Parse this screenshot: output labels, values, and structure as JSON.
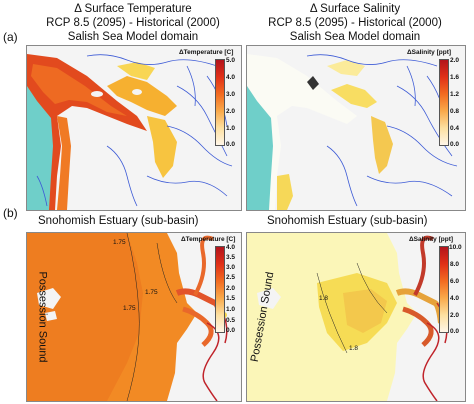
{
  "panels": {
    "a_label": "(a)",
    "b_label": "(b)"
  },
  "top_left": {
    "title_lines": [
      "Δ Surface Temperature",
      "RCP 8.5 (2095) - Historical (2000)",
      "Salish Sea Model domain"
    ],
    "colorbar_title": "ΔTemperature [C]",
    "ticks": [
      "5.0",
      "4.0",
      "3.0",
      "2.0",
      "1.0",
      "0.0"
    ]
  },
  "top_right": {
    "title_lines": [
      "Δ Surface Salinity",
      "RCP 8.5 (2095) - Historical (2000)",
      "Salish Sea Model domain"
    ],
    "colorbar_title": "ΔSalinity [ppt]",
    "ticks": [
      "2.0",
      "1.6",
      "1.2",
      "0.8",
      "0.4",
      "0.0"
    ]
  },
  "bottom_left": {
    "title": "Snohomish Estuary (sub-basin)",
    "colorbar_title": "ΔTemperature [C]",
    "ticks": [
      "4.0",
      "3.5",
      "3.0",
      "2.5",
      "2.0",
      "1.5",
      "1.0",
      "0.5",
      "0.0"
    ],
    "place_label": "Possession Sound",
    "contour_labels": [
      "1.75",
      "1.75",
      "1.75"
    ]
  },
  "bottom_right": {
    "title": "Snohomish Estuary (sub-basin)",
    "colorbar_title": "ΔSalinity [ppt]",
    "ticks": [
      "10.0",
      "8.0",
      "6.0",
      "4.0",
      "2.0",
      "0.0"
    ],
    "place_label": "Possession Sound",
    "contour_labels": [
      "1.8",
      "1.8"
    ]
  },
  "colors": {
    "ocean": "#6fcfc9",
    "land": "#f4f4f4",
    "river": "#3d5bd6",
    "temp_hot": "#e03018",
    "temp_mid": "#ff8a1a",
    "sal_light": "#fff7a0"
  }
}
